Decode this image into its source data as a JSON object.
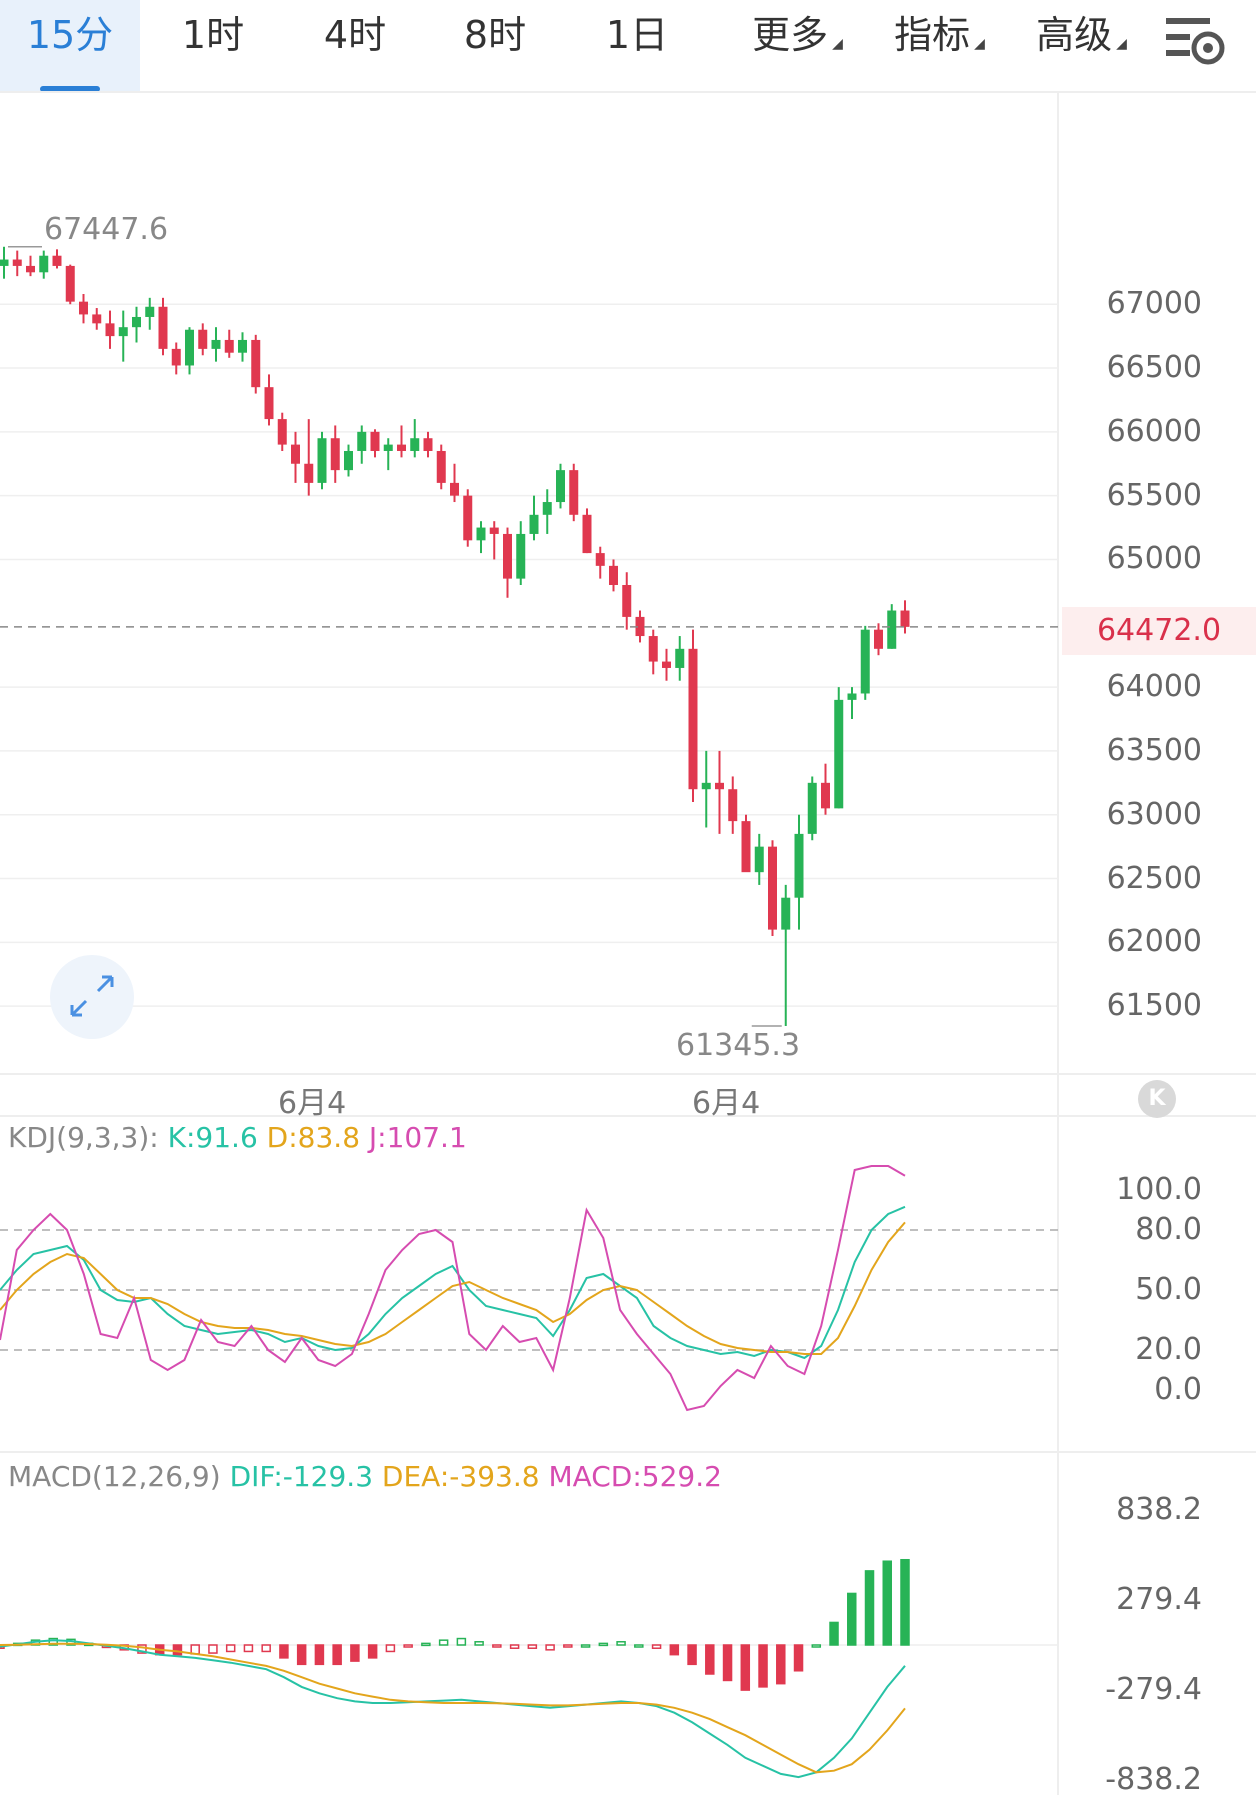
{
  "tabs": [
    {
      "label": "15分",
      "active": true
    },
    {
      "label": "1时"
    },
    {
      "label": "4时"
    },
    {
      "label": "8时"
    },
    {
      "label": "1日"
    },
    {
      "label": "更多",
      "dropdown": true
    },
    {
      "label": "指标",
      "dropdown": true
    },
    {
      "label": "高级",
      "dropdown": true
    }
  ],
  "icons": {
    "settings": "settings-icon",
    "expand": "expand-icon",
    "collapse": "collapse-icon"
  },
  "colors": {
    "up": "#27b356",
    "down": "#e0384f",
    "active_tab": "#2a7fd6",
    "k": "#27c2a5",
    "d": "#e3a51c",
    "j": "#d64cb0"
  },
  "chart_data": [
    {
      "type": "candlestick",
      "ylim": [
        61000,
        68600
      ],
      "yticks": [
        "67000",
        "66500",
        "66000",
        "65500",
        "65000",
        "64000",
        "63500",
        "63000",
        "62500",
        "62000",
        "61500"
      ],
      "xtick_labels": [
        "6月4",
        "6月4"
      ],
      "last_price": "64472.0",
      "high_label": "67447.6",
      "low_label": "61345.3",
      "candles": [
        [
          67300,
          67450,
          67200,
          67350
        ],
        [
          67350,
          67420,
          67220,
          67300
        ],
        [
          67300,
          67380,
          67220,
          67250
        ],
        [
          67250,
          67420,
          67200,
          67380
        ],
        [
          67380,
          67430,
          67280,
          67300
        ],
        [
          67300,
          67310,
          67000,
          67020
        ],
        [
          67020,
          67080,
          66850,
          66920
        ],
        [
          66920,
          66970,
          66800,
          66850
        ],
        [
          66850,
          66950,
          66650,
          66750
        ],
        [
          66750,
          66950,
          66550,
          66820
        ],
        [
          66820,
          66980,
          66700,
          66900
        ],
        [
          66900,
          67050,
          66800,
          66980
        ],
        [
          66980,
          67050,
          66600,
          66650
        ],
        [
          66650,
          66700,
          66450,
          66520
        ],
        [
          66520,
          66820,
          66450,
          66800
        ],
        [
          66800,
          66850,
          66600,
          66650
        ],
        [
          66650,
          66820,
          66550,
          66720
        ],
        [
          66720,
          66800,
          66580,
          66620
        ],
        [
          66620,
          66780,
          66550,
          66720
        ],
        [
          66720,
          66760,
          66300,
          66350
        ],
        [
          66350,
          66450,
          66050,
          66100
        ],
        [
          66100,
          66150,
          65850,
          65900
        ],
        [
          65900,
          66000,
          65600,
          65750
        ],
        [
          65750,
          66100,
          65500,
          65600
        ],
        [
          65600,
          66000,
          65550,
          65950
        ],
        [
          65950,
          66050,
          65600,
          65700
        ],
        [
          65700,
          65900,
          65650,
          65850
        ],
        [
          65850,
          66050,
          65750,
          66000
        ],
        [
          66000,
          66020,
          65800,
          65850
        ],
        [
          65850,
          65950,
          65700,
          65900
        ],
        [
          65900,
          66050,
          65800,
          65850
        ],
        [
          65850,
          66100,
          65800,
          65950
        ],
        [
          65950,
          66000,
          65800,
          65850
        ],
        [
          65850,
          65900,
          65550,
          65600
        ],
        [
          65600,
          65750,
          65450,
          65500
        ],
        [
          65500,
          65550,
          65100,
          65150
        ],
        [
          65150,
          65300,
          65050,
          65250
        ],
        [
          65250,
          65300,
          65000,
          65200
        ],
        [
          65200,
          65250,
          64700,
          64850
        ],
        [
          64850,
          65300,
          64800,
          65200
        ],
        [
          65200,
          65500,
          65150,
          65350
        ],
        [
          65350,
          65550,
          65200,
          65450
        ],
        [
          65450,
          65750,
          65400,
          65700
        ],
        [
          65700,
          65750,
          65300,
          65350
        ],
        [
          65350,
          65400,
          65050,
          65050
        ],
        [
          65050,
          65100,
          64850,
          64950
        ],
        [
          64950,
          65000,
          64750,
          64800
        ],
        [
          64800,
          64900,
          64450,
          64550
        ],
        [
          64550,
          64600,
          64350,
          64400
        ],
        [
          64400,
          64450,
          64100,
          64200
        ],
        [
          64200,
          64300,
          64050,
          64150
        ],
        [
          64150,
          64400,
          64050,
          64300
        ],
        [
          64300,
          64450,
          63100,
          63200
        ],
        [
          63200,
          63500,
          62900,
          63250
        ],
        [
          63250,
          63500,
          62850,
          63200
        ],
        [
          63200,
          63300,
          62850,
          62950
        ],
        [
          62950,
          63000,
          62600,
          62550
        ],
        [
          62550,
          62850,
          62450,
          62750
        ],
        [
          62750,
          62800,
          62050,
          62100
        ],
        [
          62100,
          62450,
          61345,
          62350
        ],
        [
          62350,
          63000,
          62100,
          62850
        ],
        [
          62850,
          63300,
          62800,
          63250
        ],
        [
          63250,
          63400,
          63000,
          63050
        ],
        [
          63050,
          64000,
          63050,
          63900
        ],
        [
          63900,
          64000,
          63750,
          63950
        ],
        [
          63950,
          64480,
          63900,
          64450
        ],
        [
          64450,
          64500,
          64250,
          64300
        ],
        [
          64300,
          64650,
          64300,
          64600
        ],
        [
          64600,
          64680,
          64420,
          64472
        ]
      ]
    },
    {
      "type": "line",
      "title": "KDJ(9,3,3):",
      "series": [
        {
          "name": "K:91.6",
          "values": [
            50,
            60,
            68,
            70,
            72,
            65,
            50,
            45,
            44,
            46,
            38,
            32,
            30,
            28,
            29,
            30,
            28,
            24,
            26,
            22,
            20,
            21,
            28,
            38,
            46,
            52,
            58,
            62,
            50,
            42,
            40,
            38,
            36,
            27,
            40,
            56,
            58,
            52,
            46,
            32,
            26,
            22,
            20,
            18,
            19,
            17,
            20,
            19,
            16,
            22,
            40,
            64,
            80,
            88,
            91.6
          ]
        },
        {
          "name": "D:83.8",
          "values": [
            40,
            50,
            58,
            64,
            68,
            66,
            58,
            50,
            46,
            46,
            43,
            38,
            34,
            32,
            31,
            31,
            30,
            28,
            27,
            25,
            23,
            22,
            24,
            28,
            34,
            40,
            46,
            52,
            54,
            50,
            46,
            43,
            40,
            34,
            38,
            45,
            50,
            52,
            50,
            44,
            38,
            32,
            27,
            23,
            21,
            20,
            19,
            19,
            18,
            18,
            26,
            42,
            60,
            74,
            83.8
          ]
        },
        {
          "name": "J:107.1",
          "values": [
            25,
            70,
            80,
            88,
            80,
            58,
            28,
            26,
            46,
            15,
            10,
            15,
            35,
            24,
            22,
            32,
            20,
            14,
            26,
            15,
            12,
            18,
            38,
            60,
            70,
            78,
            80,
            74,
            28,
            20,
            32,
            24,
            26,
            10,
            46,
            90,
            76,
            40,
            28,
            18,
            8,
            -10,
            -8,
            2,
            10,
            6,
            22,
            12,
            8,
            32,
            70,
            110,
            112,
            112,
            107.1
          ]
        }
      ],
      "yticks": [
        "100.0",
        "80.0",
        "50.0",
        "20.0",
        "0.0"
      ]
    },
    {
      "type": "bar",
      "title": "MACD(12,26,9)",
      "series": [
        {
          "name": "DIF:-129.3",
          "values": [
            -10,
            5,
            20,
            30,
            25,
            10,
            -5,
            -20,
            -40,
            -60,
            -70,
            -80,
            -95,
            -110,
            -130,
            -150,
            -200,
            -260,
            -300,
            -330,
            -350,
            -360,
            -360,
            -355,
            -350,
            -345,
            -340,
            -350,
            -360,
            -370,
            -380,
            -390,
            -380,
            -370,
            -360,
            -350,
            -360,
            -380,
            -420,
            -480,
            -550,
            -620,
            -700,
            -750,
            -800,
            -820,
            -790,
            -700,
            -580,
            -420,
            -260,
            -129.3
          ]
        },
        {
          "name": "DEA:-393.8",
          "values": [
            0,
            2,
            5,
            8,
            8,
            6,
            2,
            -5,
            -15,
            -30,
            -40,
            -55,
            -70,
            -90,
            -110,
            -130,
            -160,
            -200,
            -240,
            -270,
            -300,
            -320,
            -340,
            -350,
            -355,
            -360,
            -360,
            -360,
            -362,
            -365,
            -370,
            -375,
            -375,
            -370,
            -365,
            -360,
            -360,
            -370,
            -390,
            -420,
            -460,
            -510,
            -560,
            -620,
            -680,
            -740,
            -790,
            -780,
            -740,
            -650,
            -530,
            -393.8
          ]
        },
        {
          "name": "MACD:529.2",
          "values": [
            -20,
            10,
            30,
            40,
            35,
            10,
            -15,
            -30,
            -50,
            -60,
            -60,
            -55,
            -50,
            -40,
            -40,
            -40,
            -80,
            -120,
            -120,
            -120,
            -100,
            -80,
            -40,
            -10,
            10,
            30,
            40,
            20,
            -10,
            -20,
            -20,
            -30,
            -10,
            0,
            10,
            20,
            0,
            -20,
            -60,
            -120,
            -180,
            -220,
            -280,
            -260,
            -240,
            -160,
            0,
            140,
            320,
            460,
            520,
            529.2
          ]
        }
      ],
      "yticks": [
        "838.2",
        "279.4",
        "-279.4",
        "-838.2"
      ]
    }
  ]
}
